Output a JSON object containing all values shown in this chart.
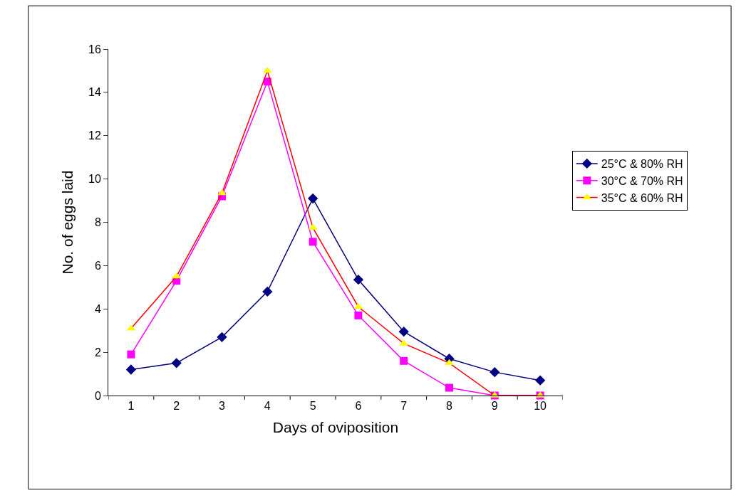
{
  "chart_data": {
    "type": "line",
    "xlabel": "Days of oviposition",
    "ylabel": "No. of eggs laid",
    "categories": [
      "1",
      "2",
      "3",
      "4",
      "5",
      "6",
      "7",
      "8",
      "9",
      "10"
    ],
    "series": [
      {
        "name": "25°C & 80% RH",
        "color": "#000080",
        "marker": "diamond",
        "values": [
          1.2,
          1.5,
          2.7,
          4.8,
          9.1,
          5.35,
          2.95,
          1.7,
          1.08,
          0.7
        ]
      },
      {
        "name": "30°C & 70% RH",
        "color": "#ff00ff",
        "marker": "square",
        "values": [
          1.9,
          5.3,
          9.2,
          14.5,
          7.1,
          3.7,
          1.6,
          0.36,
          0,
          0
        ]
      },
      {
        "name": "35°C & 60% RH",
        "color": "#ff0000",
        "colors": [
          "#ffff00",
          "#ffff00",
          "#ffff00",
          "#ffff00",
          "#ffff00",
          "#ffff00",
          "#ffff00",
          "#ffff00",
          "#ffff00",
          "#ffff00"
        ],
        "marker": "triangle",
        "values": [
          3.1,
          5.5,
          9.35,
          15.0,
          7.75,
          4.1,
          2.4,
          1.5,
          0,
          0
        ]
      }
    ],
    "ylim": [
      0,
      16
    ],
    "yticks": [
      0,
      2,
      4,
      6,
      8,
      10,
      12,
      14,
      16
    ],
    "legend": "right",
    "line_style": "solid"
  }
}
